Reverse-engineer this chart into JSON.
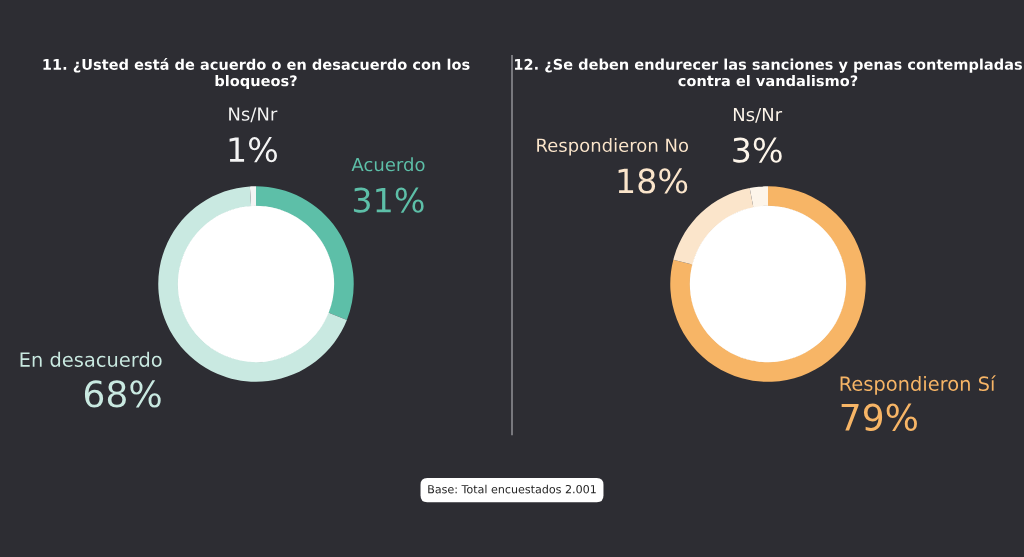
{
  "chart_data": [
    {
      "type": "donut",
      "title": "11. ¿Usted está de acuerdo o en desacuerdo con los bloqueos?",
      "categories": [
        "Acuerdo",
        "En desacuerdo",
        "Ns/Nr"
      ],
      "values": [
        31,
        68,
        1
      ],
      "colors": [
        "#5dbfa8",
        "#c9e9e1",
        "#f4f4f4"
      ],
      "data_labels": true,
      "value_labels": [
        "31%",
        "68%",
        "1%"
      ],
      "annotations": [
        "Base: Total encuestados 2.001"
      ]
    },
    {
      "type": "donut",
      "title": "12. ¿Se deben endurecer las sanciones y penas contempladas contra el vandalismo?",
      "categories": [
        "Respondieron Sí",
        "Respondieron No",
        "Ns/Nr"
      ],
      "values": [
        79,
        18,
        3
      ],
      "colors": [
        "#f7b566",
        "#fbe5cb",
        "#fdf5ea"
      ],
      "data_labels": true,
      "value_labels": [
        "79%",
        "18%",
        "3%"
      ]
    }
  ]
}
